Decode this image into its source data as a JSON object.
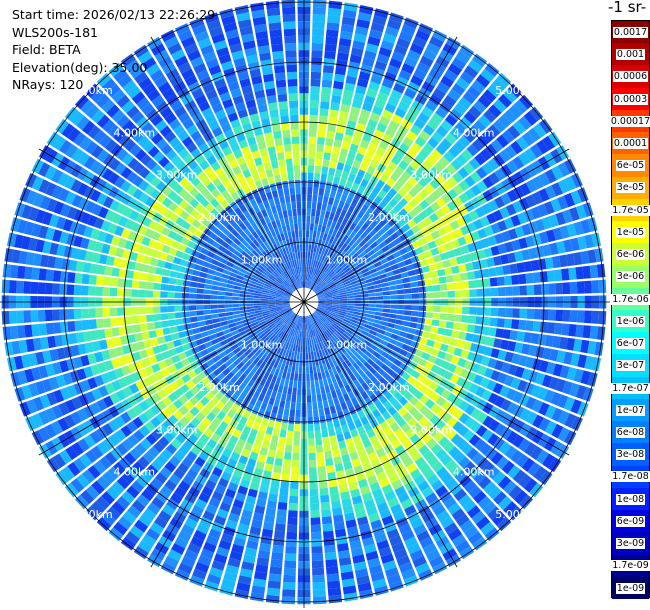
{
  "header": {
    "start_time": "Start time: 2026/02/13 22:26:29",
    "instrument": "WLS200s-181",
    "field": "Field: BETA",
    "elevation": "Elevation(deg): 35.00",
    "nrays": "NRays: 120"
  },
  "colorbar": {
    "title": "-1 sr-",
    "labels": [
      "0.0017",
      "0.001",
      "0.0006",
      "0.0003",
      "0.00017",
      "0.0001",
      "6e-05",
      "3e-05",
      "1.7e-05",
      "1e-05",
      "6e-06",
      "3e-06",
      "1.7e-06",
      "1e-06",
      "6e-07",
      "3e-07",
      "1.7e-07",
      "1e-07",
      "6e-08",
      "3e-08",
      "1.7e-08",
      "1e-08",
      "6e-09",
      "3e-09",
      "1.7e-09",
      "1e-09"
    ],
    "colors": [
      "#8b0000",
      "#b00000",
      "#d80000",
      "#ff0000",
      "#ff3a00",
      "#ff6000",
      "#ff8a00",
      "#ffae00",
      "#ffd200",
      "#ffff00",
      "#ccff33",
      "#99ff66",
      "#66ff99",
      "#33ffcc",
      "#00ffff",
      "#00dfff",
      "#00bfff",
      "#009fff",
      "#0080ff",
      "#0060ff",
      "#0040ff",
      "#0020ff",
      "#0000e0",
      "#0000c0",
      "#000090",
      "#000060"
    ]
  },
  "chart_data": {
    "type": "heatmap",
    "projection": "polar PPI",
    "field": "BETA",
    "elevation_deg": 35.0,
    "n_rays": 120,
    "range_rings_km": [
      1,
      2,
      3,
      4,
      5
    ],
    "range_ring_labels": [
      "1.00km",
      "2.00km",
      "3.00km",
      "4.00km",
      "5.00km"
    ],
    "max_range_km": 5.1,
    "azimuth_lines_deg": [
      0,
      30,
      60,
      90,
      120,
      150,
      180,
      210,
      240,
      270,
      300,
      330
    ],
    "value_pattern_approx": {
      "inner_core_color": "#1e5ce6",
      "mid_ring_color": "#c8ff3c",
      "outer_color": "#1e78ff"
    }
  }
}
